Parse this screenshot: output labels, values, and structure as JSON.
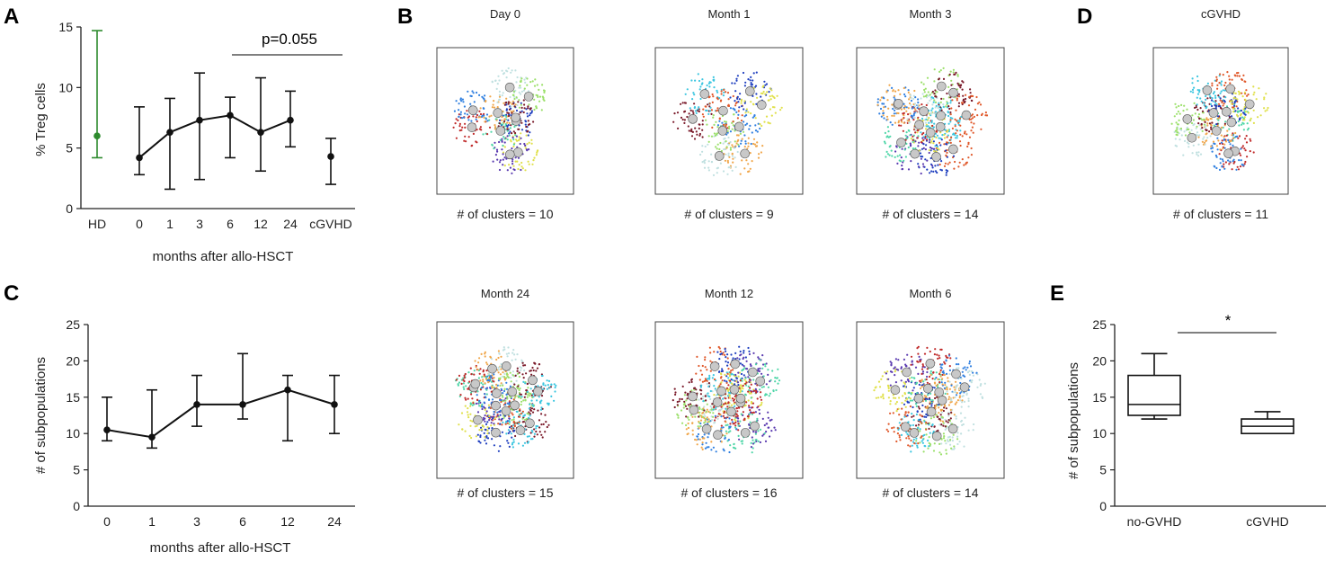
{
  "figure": {
    "panel_letters": [
      "A",
      "B",
      "C",
      "D",
      "E"
    ],
    "colors": {
      "line": "#111111",
      "hd": "#2e8b2e",
      "frame": "#444444"
    }
  },
  "chart_data": [
    {
      "id": "A",
      "type": "line",
      "ylabel": "% Treg cells",
      "xlabel": "months after allo-HSCT",
      "ylim": [
        0,
        15
      ],
      "yticks": [
        0,
        5,
        10,
        15
      ],
      "categories": [
        "HD",
        "0",
        "1",
        "3",
        "6",
        "12",
        "24",
        "cGVHD"
      ],
      "connected": [
        "0",
        "1",
        "3",
        "6",
        "12",
        "24"
      ],
      "values": [
        6.0,
        4.2,
        6.3,
        7.3,
        7.7,
        6.3,
        7.3,
        4.3
      ],
      "err_low": [
        4.2,
        2.8,
        1.6,
        2.4,
        4.2,
        3.1,
        5.1,
        2.0
      ],
      "err_high": [
        14.7,
        8.4,
        9.1,
        11.2,
        9.2,
        10.8,
        9.7,
        5.8
      ],
      "annotation": "p=0.055"
    },
    {
      "id": "C",
      "type": "line",
      "ylabel": "# of subpopulations",
      "xlabel": "months after allo-HSCT",
      "ylim": [
        0,
        25
      ],
      "yticks": [
        0,
        5,
        10,
        15,
        20,
        25
      ],
      "categories": [
        "0",
        "1",
        "3",
        "6",
        "12",
        "24"
      ],
      "values": [
        10.5,
        9.5,
        14,
        14,
        16,
        14
      ],
      "err_low": [
        9,
        8,
        11,
        12,
        9,
        10
      ],
      "err_high": [
        15,
        16,
        18,
        21,
        18,
        18
      ]
    },
    {
      "id": "E",
      "type": "box",
      "ylabel": "# of subpopulations",
      "ylim": [
        0,
        25
      ],
      "yticks": [
        0,
        5,
        10,
        15,
        20,
        25
      ],
      "categories": [
        "no-GVHD",
        "cGVHD"
      ],
      "boxes": [
        {
          "min": 12,
          "q1": 12.5,
          "median": 14,
          "q3": 18,
          "max": 21
        },
        {
          "min": 10,
          "q1": 10,
          "median": 11,
          "q3": 12,
          "max": 13
        }
      ],
      "annotation": "*"
    }
  ],
  "tsne": [
    {
      "id": "day0",
      "title": "Day 0",
      "caption": "# of clusters = 10",
      "clusters": 10
    },
    {
      "id": "month1",
      "title": "Month  1",
      "caption": "# of clusters = 9",
      "clusters": 9
    },
    {
      "id": "month3",
      "title": "Month  3",
      "caption": "# of clusters = 14",
      "clusters": 14
    },
    {
      "id": "cgvhd",
      "title": "cGVHD",
      "caption": "# of clusters = 11",
      "clusters": 11
    },
    {
      "id": "month24",
      "title": "Month  24",
      "caption": "# of clusters = 15",
      "clusters": 15
    },
    {
      "id": "month12",
      "title": "Month  12",
      "caption": "# of clusters = 16",
      "clusters": 16
    },
    {
      "id": "month6",
      "title": "Month  6",
      "caption": "# of clusters = 14",
      "clusters": 14
    }
  ]
}
